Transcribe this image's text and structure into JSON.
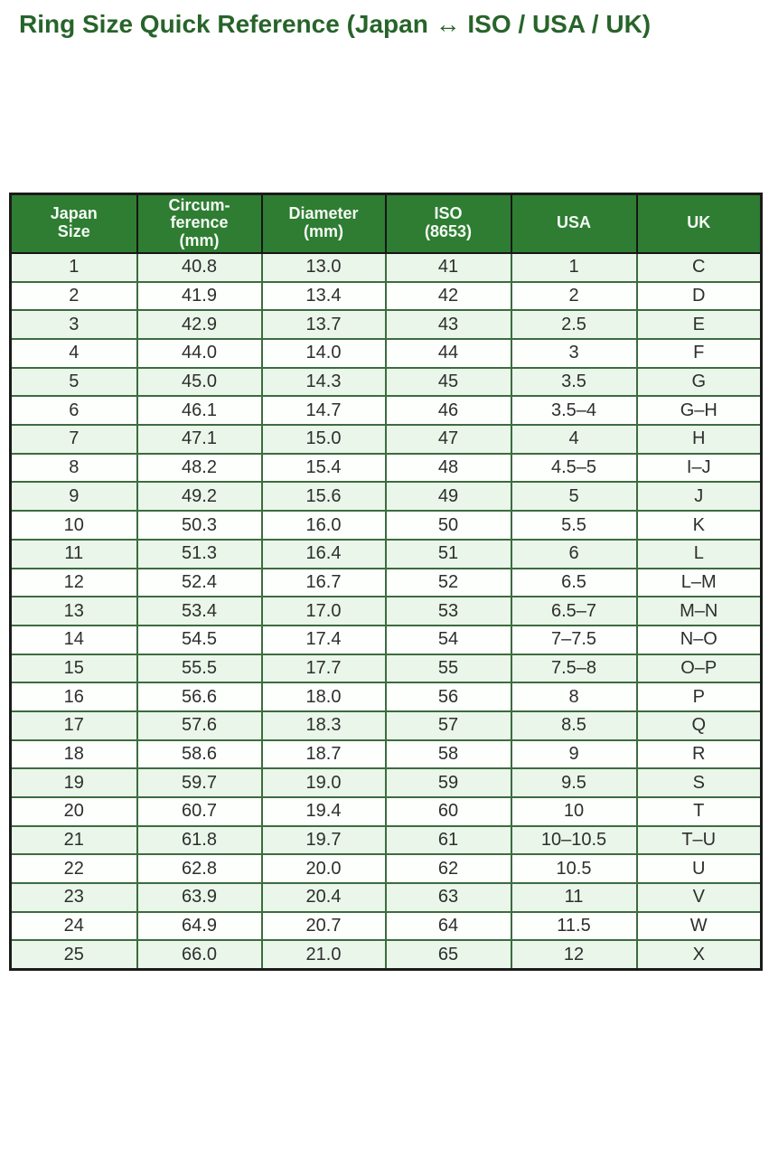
{
  "colors": {
    "title_text": "#27642a",
    "header_bg": "#2e7d32",
    "header_text": "#f5faf5",
    "row_alt_bg": "#e9f6e9",
    "row_white_bg": "#fdfffd",
    "body_border_green": "#3d6b40",
    "outer_border_dark": "#1b1b1b"
  },
  "chart_data": {
    "type": "table",
    "title": "Ring Size Quick Reference (Japan ↔ ISO / USA / UK)",
    "legend_position": "none",
    "grid": "on",
    "columns": [
      {
        "id": "japan",
        "label": "Japan Size",
        "lines": [
          "Japan",
          "Size"
        ]
      },
      {
        "id": "circumference",
        "label": "Circum-ference (mm)",
        "lines": [
          "Circum-",
          "ference",
          "(mm)"
        ]
      },
      {
        "id": "diameter",
        "label": "Diameter (mm)",
        "lines": [
          "Diameter",
          "(mm)"
        ]
      },
      {
        "id": "iso",
        "label": "ISO (8653)",
        "lines": [
          "ISO",
          "(8653)"
        ]
      },
      {
        "id": "usa",
        "label": "USA",
        "lines": [
          "USA"
        ]
      },
      {
        "id": "uk",
        "label": "UK",
        "lines": [
          "UK"
        ]
      }
    ],
    "rows": [
      [
        "1",
        "40.8",
        "13.0",
        "41",
        "1",
        "C"
      ],
      [
        "2",
        "41.9",
        "13.4",
        "42",
        "2",
        "D"
      ],
      [
        "3",
        "42.9",
        "13.7",
        "43",
        "2.5",
        "E"
      ],
      [
        "4",
        "44.0",
        "14.0",
        "44",
        "3",
        "F"
      ],
      [
        "5",
        "45.0",
        "14.3",
        "45",
        "3.5",
        "G"
      ],
      [
        "6",
        "46.1",
        "14.7",
        "46",
        "3.5–4",
        "G–H"
      ],
      [
        "7",
        "47.1",
        "15.0",
        "47",
        "4",
        "H"
      ],
      [
        "8",
        "48.2",
        "15.4",
        "48",
        "4.5–5",
        "I–J"
      ],
      [
        "9",
        "49.2",
        "15.6",
        "49",
        "5",
        "J"
      ],
      [
        "10",
        "50.3",
        "16.0",
        "50",
        "5.5",
        "K"
      ],
      [
        "11",
        "51.3",
        "16.4",
        "51",
        "6",
        "L"
      ],
      [
        "12",
        "52.4",
        "16.7",
        "52",
        "6.5",
        "L–M"
      ],
      [
        "13",
        "53.4",
        "17.0",
        "53",
        "6.5–7",
        "M–N"
      ],
      [
        "14",
        "54.5",
        "17.4",
        "54",
        "7–7.5",
        "N–O"
      ],
      [
        "15",
        "55.5",
        "17.7",
        "55",
        "7.5–8",
        "O–P"
      ],
      [
        "16",
        "56.6",
        "18.0",
        "56",
        "8",
        "P"
      ],
      [
        "17",
        "57.6",
        "18.3",
        "57",
        "8.5",
        "Q"
      ],
      [
        "18",
        "58.6",
        "18.7",
        "58",
        "9",
        "R"
      ],
      [
        "19",
        "59.7",
        "19.0",
        "59",
        "9.5",
        "S"
      ],
      [
        "20",
        "60.7",
        "19.4",
        "60",
        "10",
        "T"
      ],
      [
        "21",
        "61.8",
        "19.7",
        "61",
        "10–10.5",
        "T–U"
      ],
      [
        "22",
        "62.8",
        "20.0",
        "62",
        "10.5",
        "U"
      ],
      [
        "23",
        "63.9",
        "20.4",
        "63",
        "11",
        "V"
      ],
      [
        "24",
        "64.9",
        "20.7",
        "64",
        "11.5",
        "W"
      ],
      [
        "25",
        "66.0",
        "21.0",
        "65",
        "12",
        "X"
      ]
    ]
  }
}
